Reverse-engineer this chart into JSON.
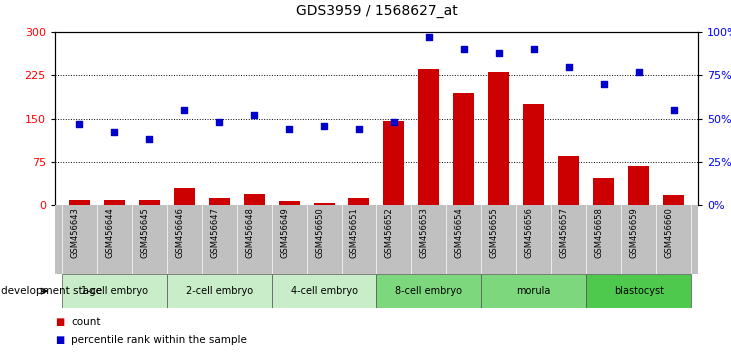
{
  "title": "GDS3959 / 1568627_at",
  "samples": [
    "GSM456643",
    "GSM456644",
    "GSM456645",
    "GSM456646",
    "GSM456647",
    "GSM456648",
    "GSM456649",
    "GSM456650",
    "GSM456651",
    "GSM456652",
    "GSM456653",
    "GSM456654",
    "GSM456655",
    "GSM456656",
    "GSM456657",
    "GSM456658",
    "GSM456659",
    "GSM456660"
  ],
  "counts": [
    10,
    10,
    10,
    30,
    12,
    20,
    8,
    4,
    12,
    145,
    235,
    195,
    230,
    175,
    85,
    48,
    68,
    18
  ],
  "percentiles": [
    47,
    42,
    38,
    55,
    48,
    52,
    44,
    46,
    44,
    48,
    97,
    90,
    88,
    90,
    80,
    70,
    77,
    55
  ],
  "stages": [
    {
      "label": "1-cell embryo",
      "start": 0,
      "end": 3
    },
    {
      "label": "2-cell embryo",
      "start": 3,
      "end": 6
    },
    {
      "label": "4-cell embryo",
      "start": 6,
      "end": 9
    },
    {
      "label": "8-cell embryo",
      "start": 9,
      "end": 12
    },
    {
      "label": "morula",
      "start": 12,
      "end": 15
    },
    {
      "label": "blastocyst",
      "start": 15,
      "end": 18
    }
  ],
  "stage_colors": [
    "#c8edc8",
    "#c8edc8",
    "#c8edc8",
    "#7dd87d",
    "#7dd87d",
    "#4ec94e"
  ],
  "bar_color": "#cc0000",
  "dot_color": "#0000cc",
  "sample_bg": "#c0c0c0",
  "ylim_left": [
    0,
    300
  ],
  "ylim_right": [
    0,
    100
  ],
  "yticks_left": [
    0,
    75,
    150,
    225,
    300
  ],
  "ytick_labels_left": [
    "0",
    "75",
    "150",
    "225",
    "300"
  ],
  "yticks_right": [
    0,
    25,
    50,
    75,
    100
  ],
  "ytick_labels_right": [
    "0%",
    "25%",
    "50%",
    "75%",
    "100%"
  ],
  "grid_levels": [
    75,
    150,
    225
  ],
  "dev_stage_label": "development stage",
  "legend_count": "count",
  "legend_pct": "percentile rank within the sample"
}
